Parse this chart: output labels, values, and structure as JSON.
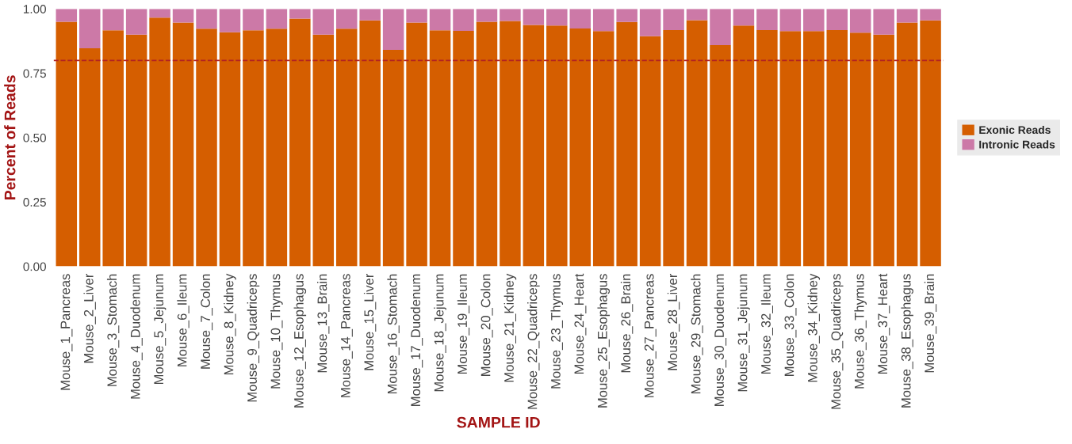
{
  "chart_data": {
    "type": "bar",
    "stacked": true,
    "xlabel": "SAMPLE ID",
    "ylabel": "Percent of Reads",
    "categories": [
      "Mouse_1_Pancreas",
      "Mouse_2_Liver",
      "Mouse_3_Stomach",
      "Mouse_4_Duodenum",
      "Mouse_5_Jejunum",
      "Mouse_6_Ileum",
      "Mouse_7_Colon",
      "Mouse_8_Kidney",
      "Mouse_9_Quadriceps",
      "Mouse_10_Thymus",
      "Mouse_12_Esophagus",
      "Mouse_13_Brain",
      "Mouse_14_Pancreas",
      "Mouse_15_Liver",
      "Mouse_16_Stomach",
      "Mouse_17_Duodenum",
      "Mouse_18_Jejunum",
      "Mouse_19_Ileum",
      "Mouse_20_Colon",
      "Mouse_21_Kidney",
      "Mouse_22_Quadriceps",
      "Mouse_23_Thymus",
      "Mouse_24_Heart",
      "Mouse_25_Esophagus",
      "Mouse_26_Brain",
      "Mouse_27_Pancreas",
      "Mouse_28_Liver",
      "Mouse_29_Stomach",
      "Mouse_30_Duodenum",
      "Mouse_31_Jejunum",
      "Mouse_32_Ileum",
      "Mouse_33_Colon",
      "Mouse_34_Kidney",
      "Mouse_35_Quadriceps",
      "Mouse_36_Thymus",
      "Mouse_37_Heart",
      "Mouse_38_Esophagus",
      "Mouse_39_Brain"
    ],
    "series": [
      {
        "name": "Exonic Reads",
        "color": "#d55e00",
        "values": [
          0.95,
          0.847,
          0.917,
          0.9,
          0.966,
          0.947,
          0.923,
          0.909,
          0.917,
          0.923,
          0.962,
          0.9,
          0.923,
          0.955,
          0.841,
          0.947,
          0.917,
          0.915,
          0.95,
          0.953,
          0.938,
          0.935,
          0.924,
          0.914,
          0.949,
          0.894,
          0.918,
          0.956,
          0.859,
          0.935,
          0.918,
          0.914,
          0.914,
          0.918,
          0.908,
          0.9,
          0.947,
          0.955
        ]
      },
      {
        "name": "Intronic Reads",
        "color": "#cc79a7",
        "values": [
          0.05,
          0.153,
          0.083,
          0.1,
          0.034,
          0.053,
          0.077,
          0.091,
          0.083,
          0.077,
          0.038,
          0.1,
          0.077,
          0.045,
          0.159,
          0.053,
          0.083,
          0.085,
          0.05,
          0.047,
          0.062,
          0.065,
          0.076,
          0.086,
          0.051,
          0.106,
          0.082,
          0.044,
          0.141,
          0.065,
          0.082,
          0.086,
          0.086,
          0.082,
          0.092,
          0.1,
          0.053,
          0.045
        ]
      }
    ],
    "ylim": [
      0,
      1
    ],
    "yticks": [
      {
        "value": 0,
        "label": "0.00"
      },
      {
        "value": 0.25,
        "label": "0.25"
      },
      {
        "value": 0.5,
        "label": "0.50"
      },
      {
        "value": 0.75,
        "label": "0.75"
      },
      {
        "value": 1,
        "label": "1.00"
      }
    ],
    "ref_lines": [
      {
        "axis": "y",
        "value": 0.8,
        "color": "#b22222",
        "line_style": "dashed"
      }
    ],
    "grid": false,
    "legend": "right"
  }
}
